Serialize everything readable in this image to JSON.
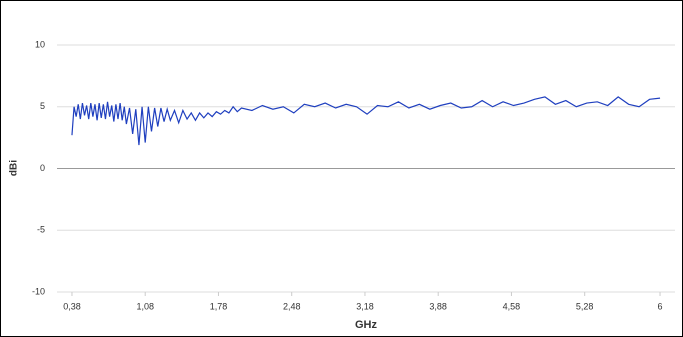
{
  "chart_data": {
    "type": "line",
    "xlabel": "GHz",
    "ylabel": "dBi",
    "xlim": [
      0.237,
      6.143
    ],
    "ylim": [
      -10,
      10
    ],
    "xticks": [
      {
        "value": 0.38,
        "label": "0,38"
      },
      {
        "value": 1.08,
        "label": "1,08"
      },
      {
        "value": 1.78,
        "label": "1,78"
      },
      {
        "value": 2.48,
        "label": "2,48"
      },
      {
        "value": 3.18,
        "label": "3,18"
      },
      {
        "value": 3.88,
        "label": "3,88"
      },
      {
        "value": 4.58,
        "label": "4,58"
      },
      {
        "value": 5.28,
        "label": "5,28"
      },
      6
    ],
    "yticks": [
      -10,
      -5,
      0,
      5,
      10
    ],
    "grid": true,
    "series": [
      {
        "color": "#1f3fbf",
        "x": [
          0.38,
          0.4,
          0.42,
          0.44,
          0.46,
          0.48,
          0.5,
          0.52,
          0.54,
          0.56,
          0.58,
          0.6,
          0.62,
          0.64,
          0.66,
          0.68,
          0.7,
          0.72,
          0.74,
          0.76,
          0.78,
          0.8,
          0.82,
          0.84,
          0.86,
          0.88,
          0.9,
          0.93,
          0.96,
          0.99,
          1.02,
          1.05,
          1.08,
          1.11,
          1.14,
          1.17,
          1.2,
          1.23,
          1.26,
          1.29,
          1.32,
          1.36,
          1.4,
          1.44,
          1.48,
          1.52,
          1.56,
          1.6,
          1.64,
          1.68,
          1.72,
          1.76,
          1.8,
          1.84,
          1.88,
          1.92,
          1.96,
          2.0,
          2.1,
          2.2,
          2.3,
          2.4,
          2.5,
          2.6,
          2.7,
          2.8,
          2.9,
          3.0,
          3.1,
          3.2,
          3.3,
          3.4,
          3.5,
          3.6,
          3.7,
          3.8,
          3.9,
          4.0,
          4.1,
          4.2,
          4.3,
          4.4,
          4.5,
          4.6,
          4.7,
          4.8,
          4.9,
          5.0,
          5.1,
          5.2,
          5.3,
          5.4,
          5.5,
          5.6,
          5.7,
          5.8,
          5.9,
          6.0
        ],
        "values": [
          2.7,
          5.0,
          4.2,
          5.2,
          4.0,
          5.3,
          4.3,
          5.1,
          4.0,
          5.3,
          4.2,
          5.2,
          3.9,
          5.3,
          4.1,
          5.2,
          4.0,
          5.4,
          4.2,
          5.1,
          3.8,
          5.2,
          4.0,
          5.3,
          3.9,
          5.0,
          3.6,
          4.9,
          2.8,
          4.8,
          1.9,
          5.0,
          2.1,
          5.0,
          3.0,
          4.9,
          3.4,
          4.9,
          3.8,
          4.8,
          3.9,
          4.7,
          3.7,
          4.7,
          4.0,
          4.5,
          3.9,
          4.5,
          4.1,
          4.5,
          4.2,
          4.6,
          4.4,
          4.7,
          4.5,
          5.0,
          4.6,
          4.9,
          4.7,
          5.1,
          4.8,
          5.0,
          4.5,
          5.2,
          5.0,
          5.3,
          4.9,
          5.2,
          5.0,
          4.4,
          5.1,
          5.0,
          5.4,
          4.9,
          5.2,
          4.8,
          5.1,
          5.3,
          4.9,
          5.0,
          5.5,
          5.0,
          5.4,
          5.1,
          5.3,
          5.6,
          5.8,
          5.2,
          5.5,
          5.0,
          5.3,
          5.4,
          5.1,
          5.8,
          5.2,
          5.0,
          5.6,
          5.7
        ]
      }
    ]
  }
}
